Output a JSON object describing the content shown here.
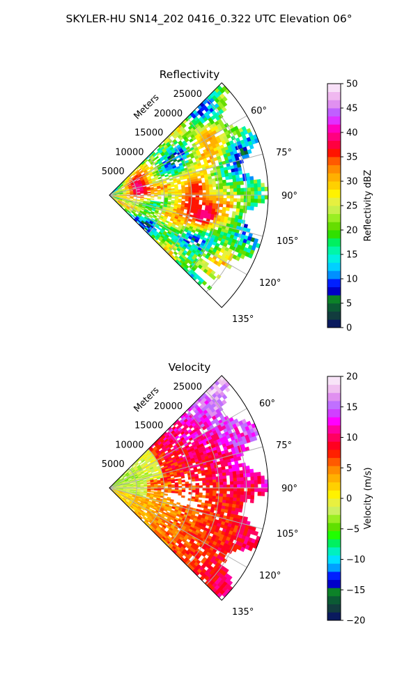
{
  "suptitle": "SKYLER-HU  SN14_202  0416_0.322 UTC Elevation 06°",
  "chart_data": [
    {
      "type": "heatmap",
      "subtype": "polar-sector",
      "title": "Reflectivity",
      "range_label": "Meters",
      "range_ticks": [
        5000,
        10000,
        15000,
        20000,
        25000
      ],
      "range_tick_labels": [
        "5000",
        "10000",
        "15000",
        "20000",
        "25000"
      ],
      "rmax": 29000,
      "theta_ticks_deg": [
        60,
        75,
        90,
        105,
        120,
        135
      ],
      "theta_tick_labels": [
        "60°",
        "75°",
        "90°",
        "105°",
        "120°",
        "135°"
      ],
      "theta_range_deg": [
        45,
        135
      ],
      "grid": true,
      "colorbar": {
        "label": "Reflectivity dBZ",
        "min": 0,
        "max": 50,
        "ticks": [
          0,
          5,
          10,
          15,
          20,
          25,
          30,
          35,
          40,
          45,
          50
        ],
        "tick_labels": [
          "0",
          "5",
          "10",
          "15",
          "20",
          "25",
          "30",
          "35",
          "40",
          "45",
          "50"
        ]
      },
      "features": [
        {
          "az": 76,
          "r": 5500,
          "value": 40
        },
        {
          "az": 101,
          "r": 17500,
          "value": 42
        },
        {
          "az": 85,
          "r": 16000,
          "value": 36
        },
        {
          "az": 60,
          "r": 21000,
          "value": 32
        },
        {
          "az": 96,
          "r": 15000,
          "value": 36
        }
      ]
    },
    {
      "type": "heatmap",
      "subtype": "polar-sector",
      "title": "Velocity",
      "range_label": "Meters",
      "range_ticks": [
        5000,
        10000,
        15000,
        20000,
        25000
      ],
      "range_tick_labels": [
        "5000",
        "10000",
        "15000",
        "20000",
        "25000"
      ],
      "rmax": 29000,
      "theta_ticks_deg": [
        60,
        75,
        90,
        105,
        120,
        135
      ],
      "theta_tick_labels": [
        "60°",
        "75°",
        "90°",
        "105°",
        "120°",
        "135°"
      ],
      "theta_range_deg": [
        45,
        135
      ],
      "grid": true,
      "colorbar": {
        "label": "Velocity (m/s)",
        "min": -20,
        "max": 20,
        "ticks": [
          -20,
          -15,
          -10,
          -5,
          0,
          5,
          10,
          15,
          20
        ],
        "tick_labels": [
          "−20",
          "−15",
          "−10",
          "−5",
          "0",
          "5",
          "10",
          "15",
          "20"
        ]
      }
    }
  ],
  "colors": {
    "reflectivity_scale": [
      "#0a1a5e",
      "#123c3e",
      "#0b5a34",
      "#0c8228",
      "#0000c8",
      "#0020ff",
      "#0090ff",
      "#00d0ff",
      "#00f0e0",
      "#00f6a8",
      "#00f060",
      "#30e000",
      "#66dd00",
      "#99ee22",
      "#c8f04a",
      "#e6f040",
      "#fff200",
      "#ffd000",
      "#ffb000",
      "#ff8c00",
      "#ff5a00",
      "#ff1400",
      "#ff0040",
      "#ff0080",
      "#ff00c0",
      "#e030ff",
      "#c060ff",
      "#e090f0",
      "#f0b8f0",
      "#f8e0f8"
    ],
    "velocity_scale": [
      "#0a1a5e",
      "#123c3e",
      "#0b5a34",
      "#0c8228",
      "#0000c8",
      "#0020ff",
      "#00a0ff",
      "#00e0ff",
      "#00f0c0",
      "#00f060",
      "#20ff00",
      "#60e000",
      "#9aee22",
      "#ccf060",
      "#e8f040",
      "#fff200",
      "#ffd000",
      "#ffb000",
      "#ff8c00",
      "#ff5a00",
      "#ff2000",
      "#ff0020",
      "#ff0060",
      "#ff00a0",
      "#ff00ff",
      "#d040ff",
      "#c070ff",
      "#e090f0",
      "#f0c0f0",
      "#f8e4f8"
    ]
  }
}
